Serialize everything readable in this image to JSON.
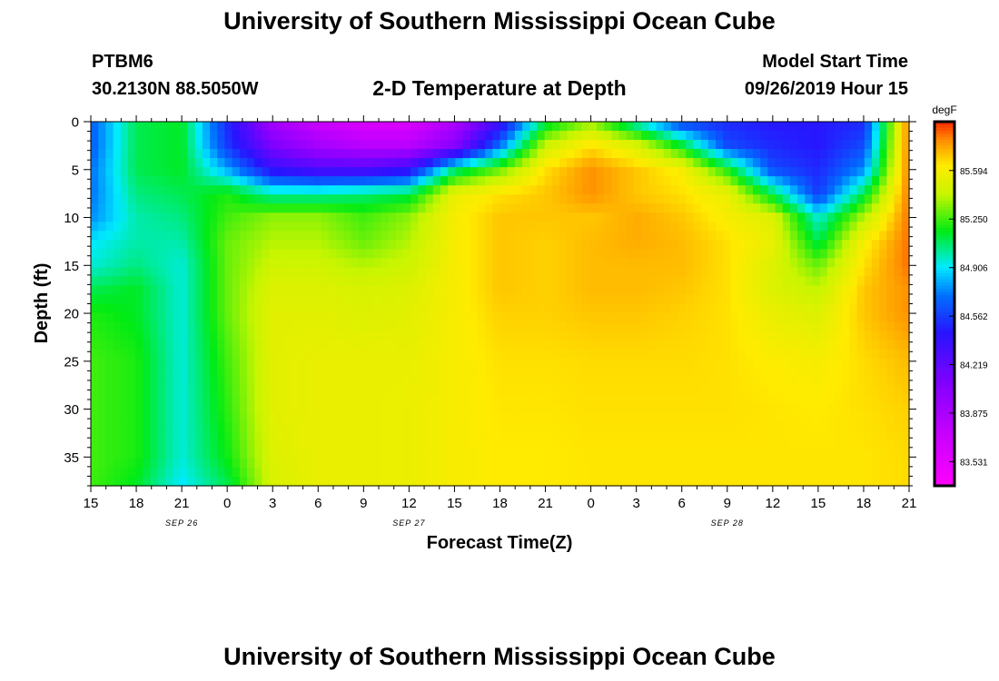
{
  "header": {
    "title": "University of Southern Mississippi Ocean Cube",
    "station": "PTBM6",
    "coords": "30.2130N 88.5050W",
    "subtitle": "2-D Temperature at Depth",
    "model_start_label": "Model Start Time",
    "model_start_value": "09/26/2019 Hour 15"
  },
  "footer": {
    "title": "University of Southern Mississippi Ocean Cube"
  },
  "chart_data": {
    "type": "heatmap",
    "xlabel": "Forecast Time(Z)",
    "ylabel": "Depth (ft)",
    "x_ticks": [
      "15",
      "18",
      "21",
      "0",
      "3",
      "6",
      "9",
      "12",
      "15",
      "18",
      "21",
      "0",
      "3",
      "6",
      "9",
      "12",
      "15",
      "18",
      "21"
    ],
    "date_labels": [
      {
        "label": "SEP 26",
        "tick_index": 2
      },
      {
        "label": "SEP 27",
        "tick_index": 7
      },
      {
        "label": "SEP 28",
        "tick_index": 14
      }
    ],
    "y_ticks": [
      0,
      5,
      10,
      15,
      20,
      25,
      30,
      35
    ],
    "ylim": [
      0,
      38
    ],
    "colorbar": {
      "unit": "degF",
      "min": 83.36,
      "max": 85.94,
      "tick_values": [
        83.531,
        83.875,
        84.219,
        84.562,
        84.906,
        85.25,
        85.594
      ],
      "tick_labels": [
        "83.531",
        "83.875",
        "84.219",
        "84.562",
        "84.906",
        "85.250",
        "85.594"
      ]
    },
    "field": {
      "x_hours": [
        0,
        3,
        6,
        9,
        12,
        15,
        18,
        21,
        24,
        27,
        30,
        33,
        36,
        39,
        42,
        45,
        48,
        51,
        54
      ],
      "depths": [
        0,
        2.5,
        5,
        7.5,
        10,
        12.5,
        15,
        17.5,
        20,
        25,
        30,
        35,
        38
      ],
      "values": [
        [
          84.65,
          85.1,
          85.15,
          84.5,
          83.9,
          83.7,
          83.6,
          83.6,
          83.85,
          84.35,
          85.1,
          85.35,
          84.95,
          84.55,
          84.5,
          84.45,
          84.45,
          84.5,
          85.85
        ],
        [
          84.65,
          85.1,
          85.15,
          84.55,
          84.1,
          83.9,
          83.8,
          83.8,
          84.05,
          84.7,
          85.45,
          85.65,
          85.5,
          85.15,
          84.6,
          84.5,
          84.45,
          84.6,
          85.85
        ],
        [
          84.7,
          85.1,
          85.15,
          84.8,
          84.4,
          84.3,
          84.3,
          84.4,
          85.05,
          85.3,
          85.65,
          85.8,
          85.7,
          85.6,
          85.2,
          84.6,
          84.5,
          84.75,
          85.85
        ],
        [
          84.7,
          85.05,
          85.1,
          85.2,
          85.0,
          85.0,
          85.05,
          85.1,
          85.55,
          85.65,
          85.7,
          85.8,
          85.7,
          85.65,
          85.55,
          85.1,
          84.55,
          85.1,
          85.85
        ],
        [
          84.75,
          85.0,
          85.05,
          85.25,
          85.35,
          85.35,
          85.25,
          85.35,
          85.6,
          85.7,
          85.7,
          85.7,
          85.75,
          85.7,
          85.6,
          85.5,
          84.95,
          85.4,
          85.85
        ],
        [
          84.9,
          85.0,
          85.0,
          85.3,
          85.4,
          85.4,
          85.3,
          85.4,
          85.6,
          85.7,
          85.68,
          85.72,
          85.75,
          85.72,
          85.65,
          85.55,
          85.1,
          85.6,
          85.85
        ],
        [
          84.95,
          85.05,
          84.95,
          85.3,
          85.45,
          85.45,
          85.4,
          85.45,
          85.6,
          85.7,
          85.68,
          85.72,
          85.72,
          85.72,
          85.65,
          85.5,
          85.3,
          85.65,
          85.85
        ],
        [
          85.1,
          85.15,
          84.95,
          85.3,
          85.5,
          85.5,
          85.48,
          85.5,
          85.6,
          85.7,
          85.68,
          85.72,
          85.72,
          85.7,
          85.65,
          85.5,
          85.42,
          85.7,
          85.8
        ],
        [
          85.2,
          85.15,
          84.95,
          85.3,
          85.52,
          85.52,
          85.5,
          85.52,
          85.6,
          85.68,
          85.68,
          85.7,
          85.7,
          85.68,
          85.65,
          85.55,
          85.5,
          85.7,
          85.8
        ],
        [
          85.25,
          85.2,
          84.95,
          85.25,
          85.52,
          85.55,
          85.55,
          85.55,
          85.6,
          85.65,
          85.65,
          85.66,
          85.66,
          85.66,
          85.65,
          85.62,
          85.6,
          85.66,
          85.72
        ],
        [
          85.25,
          85.2,
          84.95,
          85.22,
          85.52,
          85.55,
          85.55,
          85.56,
          85.6,
          85.64,
          85.64,
          85.65,
          85.65,
          85.65,
          85.65,
          85.64,
          85.63,
          85.65,
          85.68
        ],
        [
          85.25,
          85.2,
          84.95,
          85.18,
          85.5,
          85.55,
          85.55,
          85.56,
          85.6,
          85.63,
          85.63,
          85.64,
          85.64,
          85.64,
          85.64,
          85.64,
          85.64,
          85.64,
          85.66
        ],
        [
          85.25,
          85.15,
          84.9,
          85.1,
          85.48,
          85.55,
          85.55,
          85.56,
          85.6,
          85.63,
          85.63,
          85.64,
          85.64,
          85.64,
          85.64,
          85.64,
          85.64,
          85.64,
          85.66
        ]
      ]
    }
  }
}
